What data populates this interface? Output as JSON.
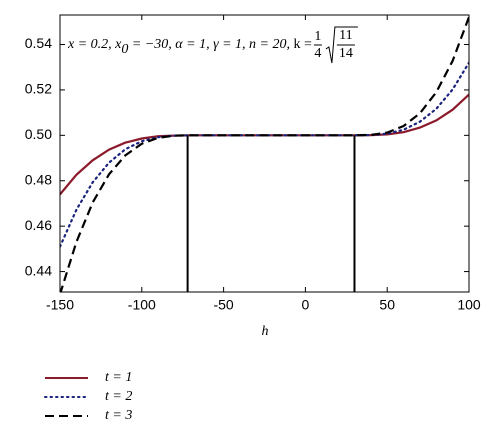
{
  "chart_data": {
    "type": "line",
    "x": [
      -150,
      -140,
      -130,
      -120,
      -110,
      -100,
      -90,
      -80,
      -70,
      -60,
      -50,
      -40,
      -30,
      -20,
      -10,
      0,
      10,
      20,
      30,
      40,
      50,
      60,
      70,
      80,
      90,
      100
    ],
    "series": [
      {
        "name": "t = 1",
        "color": "#8b1a2b",
        "dash": "solid",
        "values": [
          0.474,
          0.4826,
          0.489,
          0.4937,
          0.4968,
          0.4986,
          0.4996,
          0.4999,
          0.5,
          0.5,
          0.5,
          0.5,
          0.5,
          0.5,
          0.5,
          0.5,
          0.5,
          0.5,
          0.5,
          0.5001,
          0.5004,
          0.5014,
          0.5034,
          0.5066,
          0.5113,
          0.518
        ]
      },
      {
        "name": "t = 2",
        "color": "#1a237e",
        "dash": "dotted",
        "values": [
          0.451,
          0.4672,
          0.4793,
          0.488,
          0.4939,
          0.4974,
          0.4992,
          0.4999,
          0.5,
          0.5,
          0.5,
          0.5,
          0.5,
          0.5,
          0.5,
          0.5,
          0.5,
          0.5,
          0.5,
          0.5001,
          0.5007,
          0.5025,
          0.506,
          0.5117,
          0.5202,
          0.532
        ]
      },
      {
        "name": "t = 3",
        "color": "#000000",
        "dash": "dashed",
        "values": [
          0.43,
          0.453,
          0.4704,
          0.4829,
          0.4912,
          0.4963,
          0.4989,
          0.4999,
          0.5,
          0.5,
          0.5,
          0.5,
          0.5,
          0.5,
          0.5,
          0.5,
          0.5,
          0.5,
          0.5,
          0.5002,
          0.5012,
          0.5041,
          0.5097,
          0.519,
          0.5328,
          0.5521
        ]
      }
    ],
    "xlabel": "h",
    "xlim": [
      -150,
      100
    ],
    "xticks": [
      -150,
      -100,
      -50,
      0,
      50,
      100
    ],
    "ylim": [
      0.431,
      0.553
    ],
    "yticks": [
      0.44,
      0.46,
      0.48,
      {
        "value": 0.5,
        "label": "0.50"
      },
      0.52,
      0.54
    ],
    "vlines": [
      -72,
      30
    ],
    "vline_top": 0.5,
    "annotation": {
      "lead": "x = 0.2, x",
      "sub": "0",
      "tail": " = −30, α = 1, γ = 1, n = 20, ",
      "k": "k =",
      "frac": [
        "1",
        "4"
      ],
      "root": [
        "11",
        "14"
      ]
    },
    "legend": "below"
  }
}
